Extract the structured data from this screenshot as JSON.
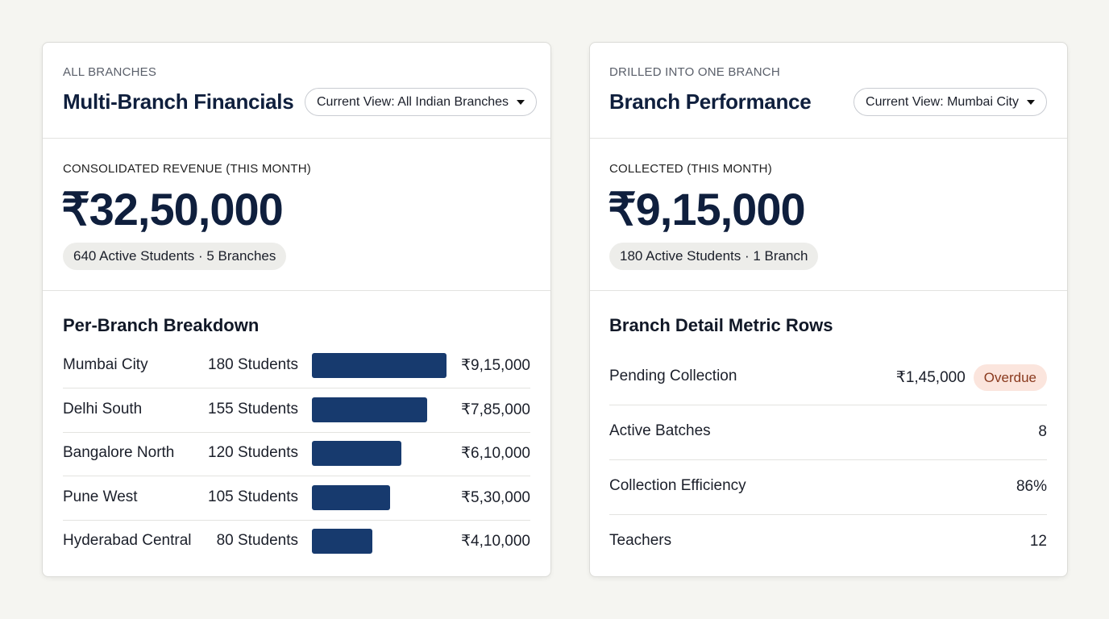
{
  "left": {
    "eyebrow": "ALL BRANCHES",
    "title": "Multi-Branch Financials",
    "dropdown": "Current View: All Indian Branches",
    "kpi_label": "CONSOLIDATED REVENUE (THIS MONTH)",
    "kpi_value": "₹32,50,000",
    "chip": "640 Active Students · 5 Branches",
    "section_title": "Per-Branch Breakdown",
    "rows": [
      {
        "name": "Mumbai City",
        "students": "180 Students",
        "revenue": 915000,
        "revenue_label": "₹9,15,000"
      },
      {
        "name": "Delhi South",
        "students": "155 Students",
        "revenue": 785000,
        "revenue_label": "₹7,85,000"
      },
      {
        "name": "Bangalore North",
        "students": "120 Students",
        "revenue": 610000,
        "revenue_label": "₹6,10,000"
      },
      {
        "name": "Pune West",
        "students": "105 Students",
        "revenue": 530000,
        "revenue_label": "₹5,30,000"
      },
      {
        "name": "Hyderabad Central",
        "students": "80 Students",
        "revenue": 410000,
        "revenue_label": "₹4,10,000"
      }
    ]
  },
  "right": {
    "eyebrow": "DRILLED INTO ONE BRANCH",
    "title": "Branch Performance",
    "dropdown": "Current View: Mumbai City",
    "kpi_label": "COLLECTED (THIS MONTH)",
    "kpi_value": "₹9,15,000",
    "chip": "180 Active Students · 1 Branch",
    "section_title": "Branch Detail Metric Rows",
    "rows": [
      {
        "label": "Pending Collection",
        "value": "₹1,45,000",
        "badge": "Overdue"
      },
      {
        "label": "Active Batches",
        "value": "8"
      },
      {
        "label": "Collection Efficiency",
        "value": "86%"
      },
      {
        "label": "Teachers",
        "value": "12"
      }
    ]
  }
}
